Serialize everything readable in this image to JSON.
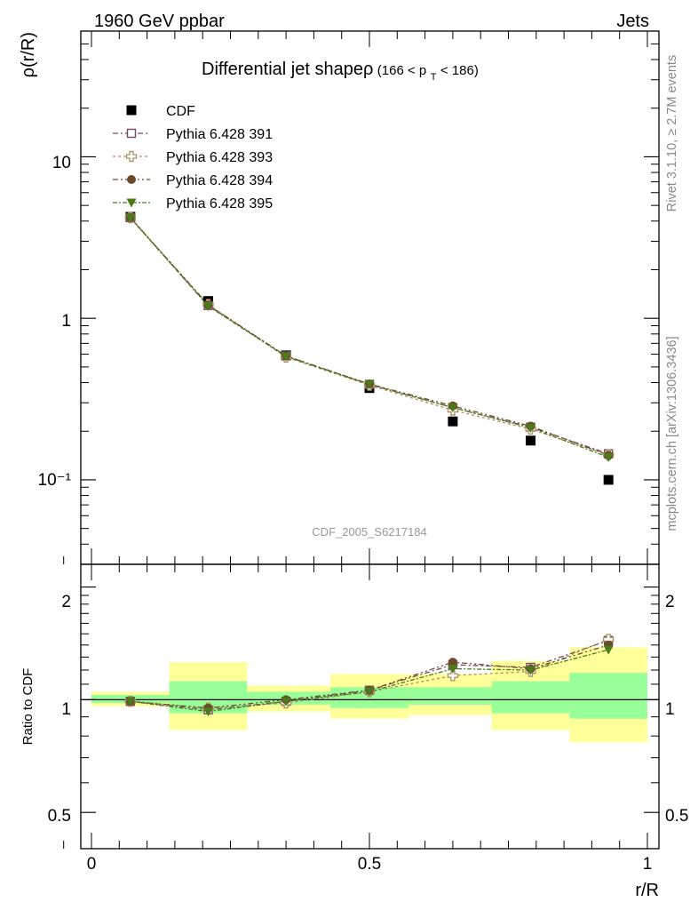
{
  "header": {
    "left": "1960 GeV ppbar",
    "right": "Jets"
  },
  "side": {
    "rivet": "Rivet 3.1.10, ≥ 2.7M events",
    "mcplots": "mcplots.cern.ch [arXiv:1306.3436]"
  },
  "chart_data": [
    {
      "type": "scatter",
      "title_main": "Differential jet shapeρ",
      "title_sub_a": "(166 < p",
      "title_sub_b": "T",
      "title_sub_c": " < 186)",
      "ylabel": "ρ(r/R)",
      "yscale": "log",
      "ylim": [
        0.03,
        60
      ],
      "xlim": [
        -0.05,
        1.0
      ],
      "watermark": "CDF_2005_S6217184",
      "y_tick_labels": [
        "10",
        "1",
        "10⁻¹"
      ],
      "x": [
        0.07,
        0.21,
        0.35,
        0.5,
        0.65,
        0.79,
        0.93
      ],
      "series": [
        {
          "name": "CDF",
          "color": "#000000",
          "marker": "square-filled",
          "values": [
            4.25,
            1.28,
            0.59,
            0.37,
            0.23,
            0.175,
            0.1
          ]
        },
        {
          "name": "Pythia 6.428 391",
          "color": "#7a4a60",
          "marker": "square-open",
          "values": [
            4.2,
            1.2,
            0.585,
            0.39,
            0.28,
            0.212,
            0.145
          ]
        },
        {
          "name": "Pythia 6.428 393",
          "color": "#a89060",
          "marker": "cross-open",
          "values": [
            4.2,
            1.22,
            0.575,
            0.385,
            0.27,
            0.206,
            0.143
          ]
        },
        {
          "name": "Pythia 6.428 394",
          "color": "#6b4a2e",
          "marker": "circle-filled",
          "values": [
            4.2,
            1.21,
            0.585,
            0.392,
            0.287,
            0.215,
            0.142
          ]
        },
        {
          "name": "Pythia 6.428 395",
          "color": "#4a7a1a",
          "marker": "triangle-down-filled",
          "values": [
            4.18,
            1.19,
            0.58,
            0.39,
            0.28,
            0.21,
            0.138
          ]
        }
      ]
    },
    {
      "type": "scatter",
      "ylabel": "Ratio to CDF",
      "xlabel": "r/R",
      "yscale": "log",
      "ylim": [
        0.4,
        2.3
      ],
      "xlim": [
        -0.05,
        1.0
      ],
      "y_tick_labels": [
        "2",
        "1",
        "0.5"
      ],
      "x_tick_labels": [
        "0",
        "0.5",
        "1"
      ],
      "bands": {
        "x_edges": [
          0.0,
          0.14,
          0.28,
          0.43,
          0.57,
          0.72,
          0.86,
          1.0
        ],
        "yellow_lo": [
          0.96,
          0.83,
          0.93,
          0.89,
          0.91,
          0.83,
          0.77,
          0.77
        ],
        "yellow_hi": [
          1.05,
          1.26,
          1.09,
          1.17,
          1.17,
          1.27,
          1.38,
          1.38
        ],
        "green_lo": [
          0.98,
          0.92,
          0.97,
          0.95,
          0.97,
          0.92,
          0.89,
          0.89
        ],
        "green_hi": [
          1.03,
          1.12,
          1.05,
          1.08,
          1.08,
          1.12,
          1.18,
          1.18
        ]
      },
      "x": [
        0.07,
        0.21,
        0.35,
        0.5,
        0.65,
        0.79,
        0.93
      ],
      "series": [
        {
          "name": "Pythia 6.428 391",
          "color": "#7a4a60",
          "marker": "square-open",
          "values": [
            0.99,
            0.94,
            0.99,
            1.06,
            1.24,
            1.22,
            1.44
          ]
        },
        {
          "name": "Pythia 6.428 393",
          "color": "#a89060",
          "marker": "cross-open",
          "values": [
            0.99,
            0.95,
            0.98,
            1.05,
            1.16,
            1.19,
            1.45
          ]
        },
        {
          "name": "Pythia 6.428 394",
          "color": "#6b4a2e",
          "marker": "circle-filled",
          "values": [
            0.99,
            0.95,
            1.0,
            1.06,
            1.26,
            1.21,
            1.4
          ]
        },
        {
          "name": "Pythia 6.428 395",
          "color": "#4a7a1a",
          "marker": "triangle-down-filled",
          "values": [
            0.99,
            0.93,
            0.99,
            1.05,
            1.21,
            1.2,
            1.36
          ]
        }
      ]
    }
  ]
}
